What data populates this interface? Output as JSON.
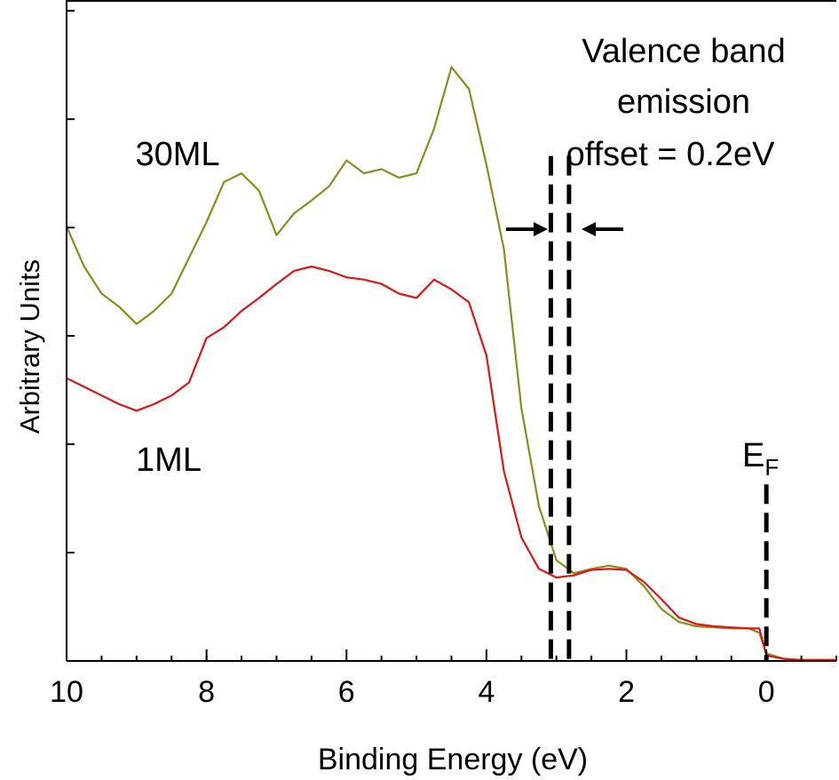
{
  "chart_data": {
    "type": "line",
    "x_label": "Binding Energy (eV)",
    "y_label": "Arbitrary Units",
    "xlim": [
      10,
      -1
    ],
    "xticks": [
      10,
      8,
      6,
      4,
      2,
      0
    ],
    "ylim": [
      0,
      6.1
    ],
    "yticks": [
      1,
      2,
      3,
      4,
      5,
      6
    ],
    "x": [
      10,
      9.75,
      9.5,
      9.25,
      9,
      8.75,
      8.5,
      8.25,
      8,
      7.75,
      7.5,
      7.25,
      7,
      6.75,
      6.5,
      6.25,
      6,
      5.75,
      5.5,
      5.25,
      5,
      4.75,
      4.5,
      4.25,
      4,
      3.75,
      3.5,
      3.25,
      3,
      2.75,
      2.5,
      2.25,
      2,
      1.75,
      1.5,
      1.25,
      1,
      0.75,
      0.5,
      0.25,
      0.1,
      0,
      -0.25,
      -0.5,
      -1
    ],
    "series": [
      {
        "name": "30ML",
        "color": "#8c8c1e",
        "values": [
          4.01,
          3.64,
          3.39,
          3.27,
          3.11,
          3.23,
          3.39,
          3.72,
          4.05,
          4.42,
          4.5,
          4.34,
          3.93,
          4.13,
          4.25,
          4.38,
          4.62,
          4.5,
          4.54,
          4.46,
          4.5,
          4.91,
          5.48,
          5.28,
          4.58,
          3.8,
          2.33,
          1.43,
          0.93,
          0.81,
          0.85,
          0.88,
          0.85,
          0.69,
          0.48,
          0.36,
          0.32,
          0.31,
          0.3,
          0.3,
          0.26,
          0.07,
          0.02,
          0.01,
          0.01
        ]
      },
      {
        "name": "1ML",
        "color": "#e01414",
        "values": [
          2.61,
          2.53,
          2.45,
          2.37,
          2.31,
          2.37,
          2.45,
          2.57,
          2.98,
          3.08,
          3.23,
          3.35,
          3.48,
          3.6,
          3.64,
          3.6,
          3.54,
          3.52,
          3.48,
          3.39,
          3.35,
          3.52,
          3.43,
          3.31,
          2.82,
          1.75,
          1.14,
          0.85,
          0.77,
          0.79,
          0.84,
          0.85,
          0.84,
          0.73,
          0.57,
          0.4,
          0.34,
          0.32,
          0.31,
          0.3,
          0.3,
          0.05,
          0.02,
          0.01,
          0.01
        ]
      }
    ],
    "vlines": [
      {
        "x": 3.08,
        "ymax": 4.66
      },
      {
        "x": 2.82,
        "ymax": 4.66
      },
      {
        "x": 0,
        "ymax": 1.63
      }
    ],
    "annotations": {
      "offset_lines": [
        "Valence band",
        "emission",
        "offset = 0.2eV"
      ],
      "ef": "E",
      "ef_sub": "F"
    }
  }
}
